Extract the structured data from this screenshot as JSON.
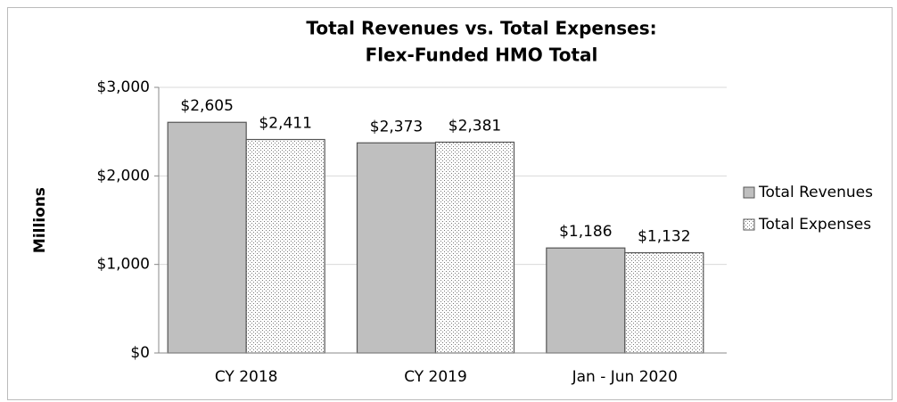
{
  "chart_data": {
    "type": "bar",
    "title": [
      "Total Revenues vs. Total Expenses:",
      "Flex-Funded HMO Total"
    ],
    "y_label": "Millions",
    "categories": [
      "CY 2018",
      "CY 2019",
      "Jan - Jun 2020"
    ],
    "series": [
      {
        "name": "Total Revenues",
        "color": "#bfbfbf",
        "values": [
          2605,
          2373,
          1186
        ],
        "value_labels": [
          "$2,605",
          "$2,373",
          "$1,186"
        ]
      },
      {
        "name": "Total Expenses",
        "color": "#ffffff",
        "pattern": "dots",
        "values": [
          2411,
          2381,
          1132
        ],
        "value_labels": [
          "$2,411",
          "$2,381",
          "$1,132"
        ]
      }
    ],
    "ylim": [
      0,
      3000
    ],
    "yticks": [
      {
        "value": 0,
        "label": "$0"
      },
      {
        "value": 1000,
        "label": "$1,000"
      },
      {
        "value": 2000,
        "label": "$2,000"
      },
      {
        "value": 3000,
        "label": "$3,000"
      }
    ],
    "grid": true,
    "legend": "right"
  }
}
